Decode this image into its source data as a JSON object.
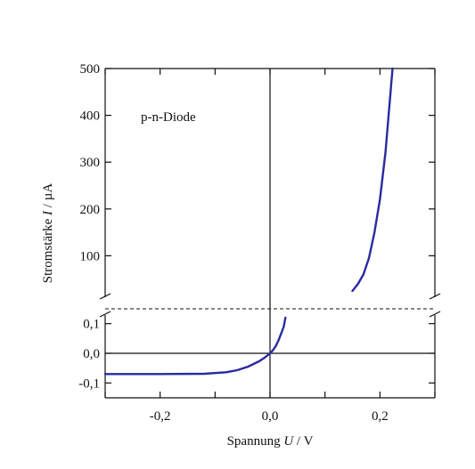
{
  "chart_data": {
    "type": "line",
    "title": "",
    "annotation": "p-n-Diode",
    "xlabel": {
      "prefix": "Spannung ",
      "symbol": "U",
      "suffix": " / V"
    },
    "ylabel": {
      "prefix": "Stromstärke ",
      "symbol": "I",
      "suffix": " / µA"
    },
    "xlim": [
      -0.3,
      0.3
    ],
    "x_ticks": [
      -0.2,
      0.0,
      0.2
    ],
    "x_tick_labels": [
      "-0,2",
      "0,0",
      "0,2"
    ],
    "broken_axis": true,
    "y_lower": {
      "range": [
        -0.15,
        0.15
      ],
      "ticks": [
        -0.1,
        0.0,
        0.1
      ],
      "tick_labels": [
        "-0,1",
        "0,0",
        "0,1"
      ]
    },
    "y_upper": {
      "range": [
        0,
        500
      ],
      "ticks": [
        100,
        200,
        300,
        400,
        500
      ],
      "tick_labels": [
        "100",
        "200",
        "300",
        "400",
        "500"
      ]
    },
    "series": [
      {
        "color": "#2a2aa0",
        "lower_points": [
          [
            -0.3,
            -0.07
          ],
          [
            -0.2,
            -0.07
          ],
          [
            -0.12,
            -0.069
          ],
          [
            -0.08,
            -0.064
          ],
          [
            -0.06,
            -0.057
          ],
          [
            -0.04,
            -0.045
          ],
          [
            -0.02,
            -0.027
          ],
          [
            -0.01,
            -0.015
          ],
          [
            0.0,
            0.0
          ],
          [
            0.005,
            0.01
          ],
          [
            0.01,
            0.023
          ],
          [
            0.015,
            0.042
          ],
          [
            0.02,
            0.065
          ],
          [
            0.025,
            0.09
          ],
          [
            0.028,
            0.12
          ]
        ],
        "upper_points": [
          [
            0.15,
            25
          ],
          [
            0.16,
            40
          ],
          [
            0.17,
            60
          ],
          [
            0.18,
            95
          ],
          [
            0.19,
            150
          ],
          [
            0.2,
            220
          ],
          [
            0.21,
            320
          ],
          [
            0.215,
            390
          ],
          [
            0.22,
            460
          ],
          [
            0.223,
            500
          ]
        ]
      }
    ]
  }
}
